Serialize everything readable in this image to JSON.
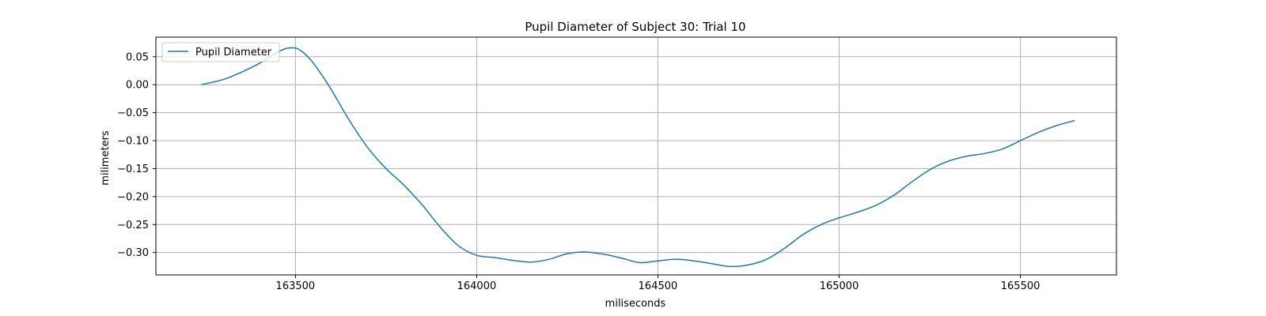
{
  "chart_data": {
    "type": "line",
    "title": "Pupil Diameter of Subject 30: Trial 10",
    "xlabel": "miliseconds",
    "ylabel": "milimeters",
    "xlim": [
      163115,
      165765
    ],
    "ylim": [
      -0.34,
      0.085
    ],
    "xticks": [
      163500,
      164000,
      164500,
      165000,
      165500
    ],
    "xtick_labels": [
      "163500",
      "164000",
      "164500",
      "165000",
      "165500"
    ],
    "yticks": [
      0.05,
      0.0,
      -0.05,
      -0.1,
      -0.15,
      -0.2,
      -0.25,
      -0.3
    ],
    "ytick_labels": [
      "0.05",
      "0.00",
      "−0.05",
      "−0.10",
      "−0.15",
      "−0.20",
      "−0.25",
      "−0.30"
    ],
    "grid": true,
    "legend": {
      "position": "upper-left",
      "entries": [
        "Pupil Diameter"
      ]
    },
    "series": [
      {
        "name": "Pupil Diameter",
        "color": "#1f77b4",
        "x": [
          163240,
          163300,
          163350,
          163400,
          163440,
          163470,
          163490,
          163510,
          163540,
          163570,
          163600,
          163650,
          163700,
          163750,
          163800,
          163850,
          163900,
          163950,
          164000,
          164050,
          164100,
          164150,
          164200,
          164250,
          164300,
          164350,
          164400,
          164450,
          164500,
          164550,
          164600,
          164650,
          164700,
          164750,
          164800,
          164850,
          164900,
          164950,
          165000,
          165050,
          165100,
          165150,
          165200,
          165250,
          165300,
          165350,
          165400,
          165450,
          165500,
          165550,
          165600,
          165650
        ],
        "y": [
          0.0,
          0.009,
          0.022,
          0.038,
          0.054,
          0.064,
          0.066,
          0.063,
          0.046,
          0.02,
          -0.01,
          -0.065,
          -0.113,
          -0.15,
          -0.18,
          -0.215,
          -0.255,
          -0.288,
          -0.305,
          -0.309,
          -0.314,
          -0.317,
          -0.312,
          -0.302,
          -0.299,
          -0.303,
          -0.31,
          -0.318,
          -0.315,
          -0.312,
          -0.315,
          -0.32,
          -0.325,
          -0.322,
          -0.312,
          -0.292,
          -0.268,
          -0.25,
          -0.238,
          -0.228,
          -0.216,
          -0.198,
          -0.174,
          -0.152,
          -0.137,
          -0.128,
          -0.123,
          -0.115,
          -0.1,
          -0.085,
          -0.073,
          -0.064
        ]
      }
    ]
  }
}
